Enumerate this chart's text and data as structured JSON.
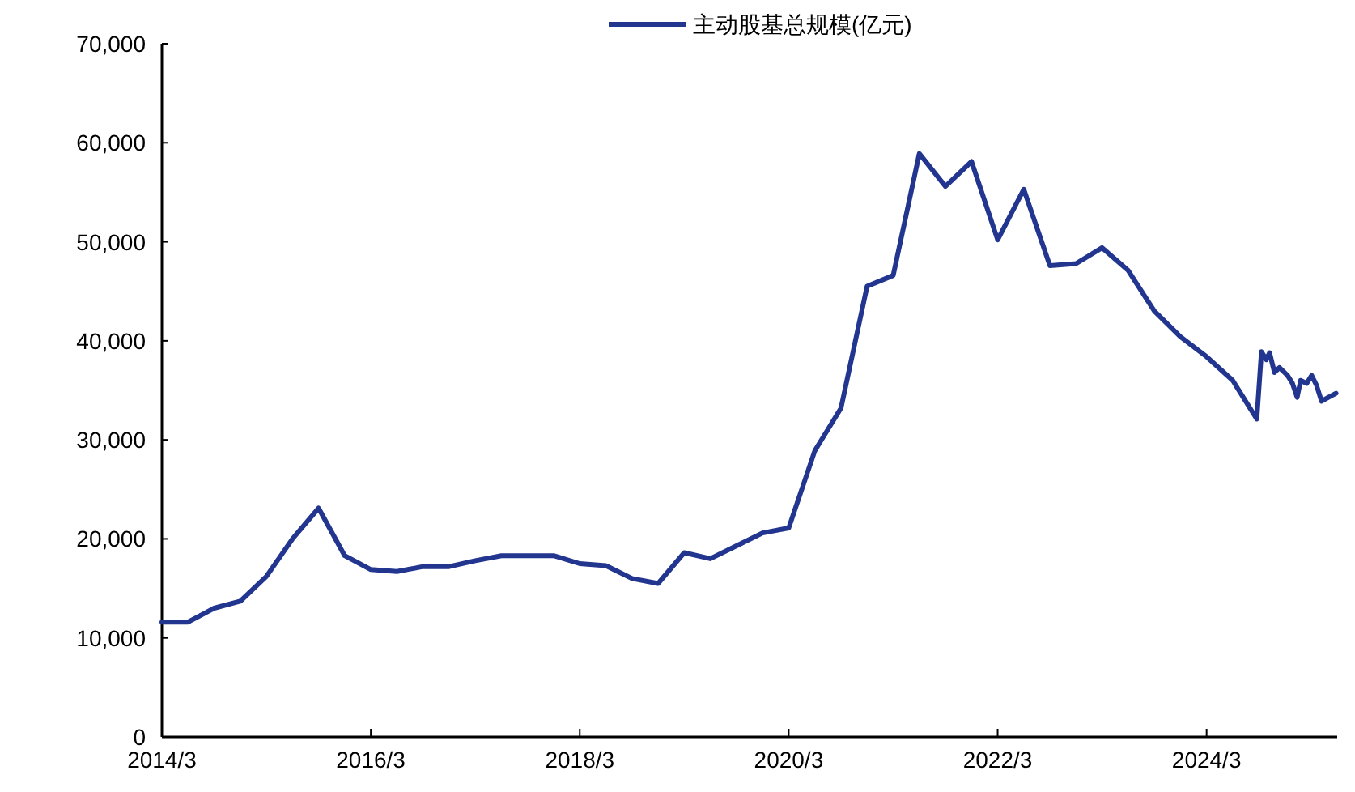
{
  "chart_data": {
    "type": "line",
    "legend": "top",
    "grid": false,
    "marker": "none",
    "line_style": "solid",
    "xlim": [
      "2014-03",
      "2025-06"
    ],
    "xticks": [
      {
        "value": "2014-03",
        "label": "2014/3"
      },
      {
        "value": "2016-03",
        "label": "2016/3"
      },
      {
        "value": "2018-03",
        "label": "2018/3"
      },
      {
        "value": "2020-03",
        "label": "2020/3"
      },
      {
        "value": "2022-03",
        "label": "2022/3"
      },
      {
        "value": "2024-03",
        "label": "2024/3"
      }
    ],
    "ylim": [
      0,
      70000
    ],
    "yticks": [
      0,
      {
        "value": 10000,
        "label": "10,000"
      },
      {
        "value": 20000,
        "label": "20,000"
      },
      {
        "value": 30000,
        "label": "30,000"
      },
      {
        "value": 40000,
        "label": "40,000"
      },
      {
        "value": 50000,
        "label": "50,000"
      },
      {
        "value": 60000,
        "label": "60,000"
      },
      {
        "value": 70000,
        "label": "70,000"
      }
    ],
    "x": [
      "2014-03",
      "2014-06",
      "2014-09",
      "2014-12",
      "2015-03",
      "2015-06",
      "2015-09",
      "2015-12",
      "2016-03",
      "2016-06",
      "2016-09",
      "2016-12",
      "2017-03",
      "2017-06",
      "2017-09",
      "2017-12",
      "2018-03",
      "2018-06",
      "2018-09",
      "2018-12",
      "2019-03",
      "2019-06",
      "2019-09",
      "2019-12",
      "2020-03",
      "2020-06",
      "2020-09",
      "2020-12",
      "2021-03",
      "2021-06",
      "2021-09",
      "2021-12",
      "2022-03",
      "2022-06",
      "2022-09",
      "2022-12",
      "2023-03",
      "2023-06",
      "2023-09",
      "2023-12",
      "2024-03",
      "2024-06",
      "2024-08-24",
      "2024-09-10",
      "2024-09-27",
      "2024-10-08",
      "2024-10-25",
      "2024-11-12",
      "2024-12-10",
      "2024-12-27",
      "2025-01-13",
      "2025-01-25",
      "2025-02-16",
      "2025-03-03",
      "2025-03-20",
      "2025-04-07",
      "2025-05-01",
      "2025-05-27"
    ],
    "series": [
      {
        "name": "主动股基总规模(亿元)",
        "color": "#22358f",
        "values": [
          11600,
          11600,
          13000,
          13700,
          16200,
          20000,
          23100,
          18300,
          16900,
          16700,
          17200,
          17200,
          17800,
          18300,
          18300,
          18300,
          17500,
          17300,
          16000,
          15500,
          18600,
          18000,
          19300,
          20600,
          21100,
          28900,
          33200,
          45500,
          46600,
          58900,
          55600,
          58100,
          50200,
          55300,
          47600,
          47800,
          49400,
          47100,
          43000,
          40400,
          38400,
          36000,
          32100,
          38900,
          38100,
          38800,
          36800,
          37300,
          36500,
          35700,
          34300,
          36000,
          35700,
          36500,
          35500,
          33900,
          34300,
          34700
        ]
      }
    ]
  }
}
